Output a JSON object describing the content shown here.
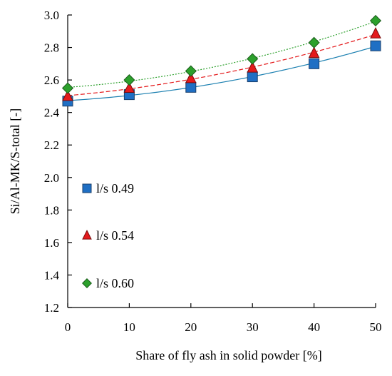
{
  "chart_data": {
    "type": "scatter",
    "title": "",
    "xlabel": "Share of fly ash in solid powder [%]",
    "ylabel": "Si/Al-MK/S-total [-]",
    "xlim": [
      0,
      50
    ],
    "ylim": [
      1.2,
      3.0
    ],
    "x_ticks": [
      "0",
      "10",
      "20",
      "30",
      "40",
      "50"
    ],
    "y_ticks": [
      "1.2",
      "1.4",
      "1.6",
      "1.8",
      "2.0",
      "2.2",
      "2.4",
      "2.6",
      "2.8",
      "3.0"
    ],
    "grid": false,
    "legend_placement": "left",
    "x": [
      0,
      10,
      20,
      30,
      40,
      50
    ],
    "series": [
      {
        "name": "l/s 0.49",
        "marker": "square",
        "color": "#1f6fc4",
        "line_color": "#1a7fb0",
        "line_style": "solid",
        "values": [
          2.47,
          2.51,
          2.555,
          2.62,
          2.7,
          2.81
        ]
      },
      {
        "name": "l/s 0.54",
        "marker": "triangle",
        "color": "#e41a1c",
        "line_color": "#e41a1c",
        "line_style": "dashed",
        "values": [
          2.5,
          2.55,
          2.61,
          2.675,
          2.765,
          2.885
        ]
      },
      {
        "name": "l/s 0.60",
        "marker": "diamond",
        "color": "#2ca02c",
        "line_color": "#2ca02c",
        "line_style": "dotted",
        "values": [
          2.55,
          2.6,
          2.655,
          2.73,
          2.83,
          2.965
        ]
      }
    ]
  }
}
